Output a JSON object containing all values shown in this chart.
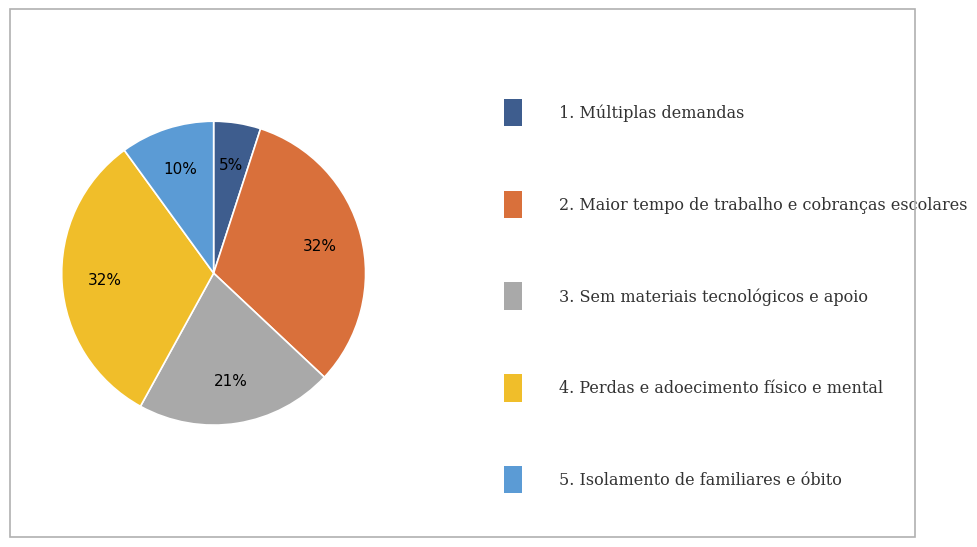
{
  "labels": [
    "1. Múltiplas demandas",
    "2. Maior tempo de trabalho e cobranças escolares",
    "3. Sem materiais tecnológicos e apoio",
    "4. Perdas e adoecimento físico e mental",
    "5. Isolamento de familiares e óbito"
  ],
  "values": [
    5,
    32,
    21,
    32,
    10
  ],
  "colors": [
    "#3E5D8E",
    "#D9703B",
    "#A9A9A9",
    "#F0BE2A",
    "#5B9BD5"
  ],
  "background_color": "#ffffff",
  "border_color": "#b0b0b0",
  "startangle": 90,
  "legend_fontsize": 11.5,
  "autopct_fontsize": 11,
  "pctdistance": 0.72
}
